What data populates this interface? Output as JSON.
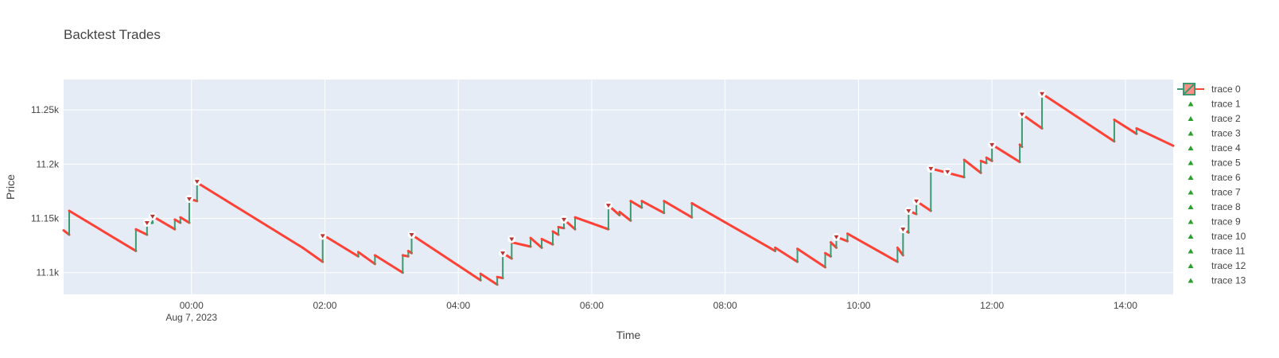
{
  "chart_data": {
    "type": "line",
    "title": "Backtest Trades",
    "xlabel": "Time",
    "ylabel": "Price",
    "xlim": [
      "2023-08-06 22:05",
      "2023-08-07 14:43"
    ],
    "ylim": [
      11080,
      11278
    ],
    "x_ticks": [
      {
        "t": "2023-08-07 00:00",
        "label": "00:00",
        "sublabel": "Aug 7, 2023"
      },
      {
        "t": "2023-08-07 02:00",
        "label": "02:00",
        "sublabel": ""
      },
      {
        "t": "2023-08-07 04:00",
        "label": "04:00",
        "sublabel": ""
      },
      {
        "t": "2023-08-07 06:00",
        "label": "06:00",
        "sublabel": ""
      },
      {
        "t": "2023-08-07 08:00",
        "label": "08:00",
        "sublabel": ""
      },
      {
        "t": "2023-08-07 10:00",
        "label": "10:00",
        "sublabel": ""
      },
      {
        "t": "2023-08-07 12:00",
        "label": "12:00",
        "sublabel": ""
      },
      {
        "t": "2023-08-07 14:00",
        "label": "14:00",
        "sublabel": ""
      }
    ],
    "y_ticks": [
      {
        "v": 11100,
        "label": "11.1k"
      },
      {
        "v": 11150,
        "label": "11.15k"
      },
      {
        "v": 11200,
        "label": "11.2k"
      },
      {
        "v": 11250,
        "label": "11.25k"
      }
    ],
    "grid": true,
    "legend_position": "right",
    "legend": [
      "trace 0",
      "trace 1",
      "trace 2",
      "trace 3",
      "trace 4",
      "trace 5",
      "trace 6",
      "trace 7",
      "trace 8",
      "trace 9",
      "trace 10",
      "trace 11",
      "trace 12",
      "trace 13"
    ],
    "colors": {
      "increasing": "#3D9970",
      "decreasing": "#FF4136",
      "plot_bg": "#E5ECF6",
      "grid": "#ffffff",
      "marker": "#2CA02C"
    },
    "price_path": [
      [
        "2023-08-06 22:05",
        11139
      ],
      [
        "2023-08-06 22:10",
        11135
      ],
      [
        "2023-08-06 22:10",
        11157
      ],
      [
        "2023-08-06 23:10",
        11120
      ],
      [
        "2023-08-06 23:10",
        11140
      ],
      [
        "2023-08-06 23:20",
        11135
      ],
      [
        "2023-08-06 23:20",
        11145
      ],
      [
        "2023-08-06 23:25",
        11146
      ],
      [
        "2023-08-06 23:25",
        11152
      ],
      [
        "2023-08-06 23:45",
        11140
      ],
      [
        "2023-08-06 23:45",
        11149
      ],
      [
        "2023-08-06 23:50",
        11146
      ],
      [
        "2023-08-06 23:50",
        11151
      ],
      [
        "2023-08-06 23:58",
        11146
      ],
      [
        "2023-08-06 23:58",
        11168
      ],
      [
        "2023-08-07 00:05",
        11166
      ],
      [
        "2023-08-07 00:05",
        11183
      ],
      [
        "2023-08-07 01:40",
        11123
      ],
      [
        "2023-08-07 01:58",
        11110
      ],
      [
        "2023-08-07 01:58",
        11135
      ],
      [
        "2023-08-07 02:30",
        11115
      ],
      [
        "2023-08-07 02:30",
        11119
      ],
      [
        "2023-08-07 02:45",
        11108
      ],
      [
        "2023-08-07 02:45",
        11116
      ],
      [
        "2023-08-07 03:10",
        11100
      ],
      [
        "2023-08-07 03:10",
        11116
      ],
      [
        "2023-08-07 03:15",
        11115
      ],
      [
        "2023-08-07 03:15",
        11120
      ],
      [
        "2023-08-07 03:18",
        11118
      ],
      [
        "2023-08-07 03:18",
        11135
      ],
      [
        "2023-08-07 04:20",
        11093
      ],
      [
        "2023-08-07 04:20",
        11099
      ],
      [
        "2023-08-07 04:35",
        11089
      ],
      [
        "2023-08-07 04:35",
        11096
      ],
      [
        "2023-08-07 04:40",
        11095
      ],
      [
        "2023-08-07 04:40",
        11118
      ],
      [
        "2023-08-07 04:48",
        11113
      ],
      [
        "2023-08-07 04:48",
        11128
      ],
      [
        "2023-08-07 05:05",
        11124
      ],
      [
        "2023-08-07 05:05",
        11132
      ],
      [
        "2023-08-07 05:15",
        11123
      ],
      [
        "2023-08-07 05:15",
        11131
      ],
      [
        "2023-08-07 05:25",
        11126
      ],
      [
        "2023-08-07 05:25",
        11138
      ],
      [
        "2023-08-07 05:30",
        11135
      ],
      [
        "2023-08-07 05:30",
        11142
      ],
      [
        "2023-08-07 05:35",
        11141
      ],
      [
        "2023-08-07 05:35",
        11149
      ],
      [
        "2023-08-07 05:45",
        11140
      ],
      [
        "2023-08-07 05:45",
        11151
      ],
      [
        "2023-08-07 06:15",
        11140
      ],
      [
        "2023-08-07 06:15",
        11162
      ],
      [
        "2023-08-07 06:25",
        11153
      ],
      [
        "2023-08-07 06:25",
        11156
      ],
      [
        "2023-08-07 06:35",
        11148
      ],
      [
        "2023-08-07 06:35",
        11166
      ],
      [
        "2023-08-07 06:45",
        11160
      ],
      [
        "2023-08-07 06:45",
        11166
      ],
      [
        "2023-08-07 07:05",
        11155
      ],
      [
        "2023-08-07 07:05",
        11166
      ],
      [
        "2023-08-07 07:30",
        11151
      ],
      [
        "2023-08-07 07:30",
        11164
      ],
      [
        "2023-08-07 08:45",
        11120
      ],
      [
        "2023-08-07 08:45",
        11123
      ],
      [
        "2023-08-07 09:05",
        11110
      ],
      [
        "2023-08-07 09:05",
        11122
      ],
      [
        "2023-08-07 09:30",
        11105
      ],
      [
        "2023-08-07 09:30",
        11118
      ],
      [
        "2023-08-07 09:35",
        11115
      ],
      [
        "2023-08-07 09:35",
        11128
      ],
      [
        "2023-08-07 09:40",
        11123
      ],
      [
        "2023-08-07 09:40",
        11133
      ],
      [
        "2023-08-07 09:50",
        11129
      ],
      [
        "2023-08-07 09:50",
        11136
      ],
      [
        "2023-08-07 10:35",
        11110
      ],
      [
        "2023-08-07 10:35",
        11123
      ],
      [
        "2023-08-07 10:40",
        11116
      ],
      [
        "2023-08-07 10:40",
        11140
      ],
      [
        "2023-08-07 10:45",
        11137
      ],
      [
        "2023-08-07 10:45",
        11157
      ],
      [
        "2023-08-07 10:52",
        11154
      ],
      [
        "2023-08-07 10:52",
        11166
      ],
      [
        "2023-08-07 11:05",
        11157
      ],
      [
        "2023-08-07 11:05",
        11196
      ],
      [
        "2023-08-07 11:35",
        11188
      ],
      [
        "2023-08-07 11:35",
        11204
      ],
      [
        "2023-08-07 11:50",
        11192
      ],
      [
        "2023-08-07 11:50",
        11203
      ],
      [
        "2023-08-07 11:55",
        11201
      ],
      [
        "2023-08-07 11:55",
        11206
      ],
      [
        "2023-08-07 12:00",
        11203
      ],
      [
        "2023-08-07 12:00",
        11218
      ],
      [
        "2023-08-07 12:25",
        11202
      ],
      [
        "2023-08-07 12:25",
        11218
      ],
      [
        "2023-08-07 12:27",
        11216
      ],
      [
        "2023-08-07 12:27",
        11246
      ],
      [
        "2023-08-07 12:45",
        11233
      ],
      [
        "2023-08-07 12:45",
        11265
      ],
      [
        "2023-08-07 13:50",
        11221
      ],
      [
        "2023-08-07 13:50",
        11241
      ],
      [
        "2023-08-07 14:10",
        11228
      ],
      [
        "2023-08-07 14:10",
        11233
      ],
      [
        "2023-08-07 14:43",
        11217
      ]
    ],
    "trade_markers": [
      [
        "2023-08-06 23:20",
        11146
      ],
      [
        "2023-08-06 23:25",
        11152
      ],
      [
        "2023-08-06 23:58",
        11168
      ],
      [
        "2023-08-07 00:05",
        11184
      ],
      [
        "2023-08-07 01:58",
        11134
      ],
      [
        "2023-08-07 03:18",
        11135
      ],
      [
        "2023-08-07 04:40",
        11118
      ],
      [
        "2023-08-07 04:48",
        11131
      ],
      [
        "2023-08-07 05:35",
        11149
      ],
      [
        "2023-08-07 06:15",
        11162
      ],
      [
        "2023-08-07 09:40",
        11133
      ],
      [
        "2023-08-07 10:40",
        11140
      ],
      [
        "2023-08-07 10:45",
        11157
      ],
      [
        "2023-08-07 10:52",
        11166
      ],
      [
        "2023-08-07 11:05",
        11196
      ],
      [
        "2023-08-07 11:20",
        11193
      ],
      [
        "2023-08-07 12:00",
        11218
      ],
      [
        "2023-08-07 12:27",
        11246
      ],
      [
        "2023-08-07 12:45",
        11265
      ]
    ]
  }
}
